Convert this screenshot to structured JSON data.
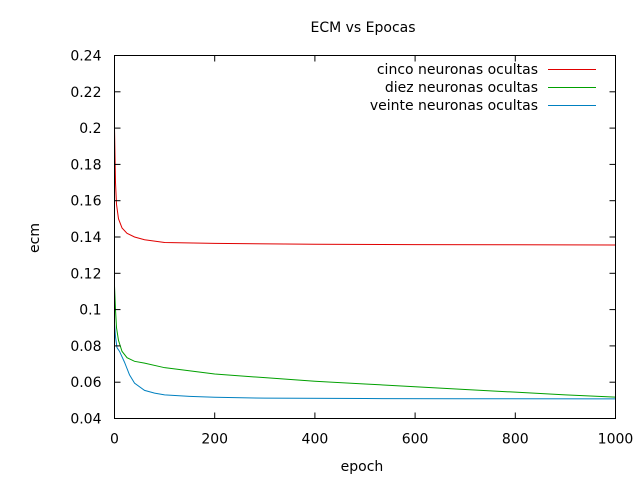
{
  "chart_data": {
    "type": "line",
    "title": "ECM vs Epocas",
    "xlabel": "epoch",
    "ylabel": "ecm",
    "xlim": [
      0,
      1000
    ],
    "ylim": [
      0.04,
      0.24
    ],
    "grid": false,
    "legend_position": "top-right",
    "x_ticks": [
      0,
      200,
      400,
      600,
      800,
      1000
    ],
    "x_tick_labels": [
      "0",
      "200",
      "400",
      "600",
      "800",
      "1000"
    ],
    "y_ticks": [
      0.04,
      0.06,
      0.08,
      0.1,
      0.12,
      0.14,
      0.16,
      0.18,
      0.2,
      0.22,
      0.24
    ],
    "y_tick_labels": [
      "0.04",
      "0.06",
      "0.08",
      "0.1",
      "0.12",
      "0.14",
      "0.16",
      "0.18",
      "0.2",
      "0.22",
      "0.24"
    ],
    "series": [
      {
        "name": "cinco neuronas ocultas",
        "color": "#e00000",
        "points": [
          [
            0,
            0.2
          ],
          [
            2,
            0.17
          ],
          [
            4,
            0.158
          ],
          [
            8,
            0.15
          ],
          [
            15,
            0.145
          ],
          [
            25,
            0.142
          ],
          [
            40,
            0.14
          ],
          [
            60,
            0.1385
          ],
          [
            100,
            0.137
          ],
          [
            200,
            0.1365
          ],
          [
            400,
            0.136
          ],
          [
            600,
            0.1358
          ],
          [
            800,
            0.1357
          ],
          [
            1000,
            0.1356
          ]
        ]
      },
      {
        "name": "diez neuronas ocultas",
        "color": "#00a000",
        "points": [
          [
            0,
            0.113
          ],
          [
            2,
            0.1
          ],
          [
            4,
            0.09
          ],
          [
            8,
            0.083
          ],
          [
            15,
            0.077
          ],
          [
            25,
            0.0735
          ],
          [
            40,
            0.0715
          ],
          [
            60,
            0.0705
          ],
          [
            100,
            0.068
          ],
          [
            200,
            0.0645
          ],
          [
            300,
            0.0625
          ],
          [
            400,
            0.0605
          ],
          [
            500,
            0.059
          ],
          [
            600,
            0.0575
          ],
          [
            700,
            0.056
          ],
          [
            800,
            0.0545
          ],
          [
            900,
            0.053
          ],
          [
            1000,
            0.0518
          ]
        ]
      },
      {
        "name": "veinte neuronas ocultas",
        "color": "#0080c0",
        "points": [
          [
            0,
            0.092
          ],
          [
            2,
            0.085
          ],
          [
            5,
            0.079
          ],
          [
            10,
            0.077
          ],
          [
            20,
            0.071
          ],
          [
            30,
            0.064
          ],
          [
            40,
            0.0595
          ],
          [
            60,
            0.0555
          ],
          [
            80,
            0.054
          ],
          [
            100,
            0.053
          ],
          [
            150,
            0.0522
          ],
          [
            200,
            0.0517
          ],
          [
            300,
            0.0512
          ],
          [
            500,
            0.051
          ],
          [
            700,
            0.0509
          ],
          [
            1000,
            0.0508
          ]
        ]
      }
    ]
  }
}
